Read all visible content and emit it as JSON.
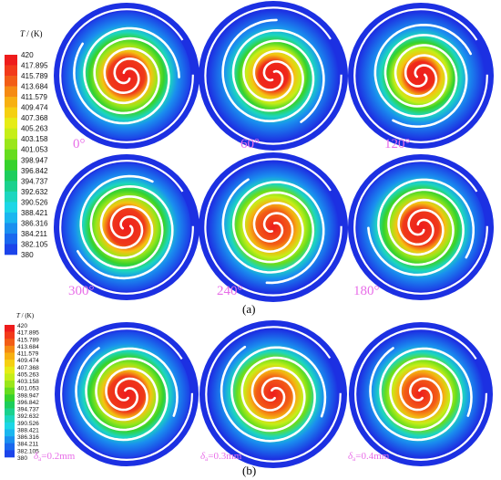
{
  "colorbar": {
    "title_var": "T",
    "title_unit": " / (K)",
    "ticks": [
      "420",
      "417.895",
      "415.789",
      "413.684",
      "411.579",
      "409.474",
      "407.368",
      "405.263",
      "403.158",
      "401.053",
      "398.947",
      "396.842",
      "394.737",
      "392.632",
      "390.526",
      "388.421",
      "386.316",
      "384.211",
      "382.105",
      "380"
    ],
    "colors": [
      "#ee1c1c",
      "#f23a1a",
      "#f25d16",
      "#f58a13",
      "#f7b012",
      "#f5d012",
      "#e6ec16",
      "#c6ee18",
      "#9ae61a",
      "#66dc1e",
      "#36d22c",
      "#1ccd5c",
      "#1ad18e",
      "#1cd6bf",
      "#1cd6e6",
      "#1ab6ef",
      "#1a8fef",
      "#1a68ee",
      "#1c44ea",
      "#1c24e0"
    ]
  },
  "panel_a": {
    "label": "(a)",
    "angles": [
      "0°",
      "60°",
      "120°",
      "300°",
      "240°",
      "180°"
    ]
  },
  "panel_b": {
    "label": "(b)",
    "clearances": [
      {
        "symbol": "δ",
        "subscript": "a",
        "value": "=0.2mm"
      },
      {
        "symbol": "δ",
        "subscript": "a",
        "value": "=0.3mm"
      },
      {
        "symbol": "δ",
        "subscript": "a",
        "value": "=0.4mm"
      }
    ]
  }
}
